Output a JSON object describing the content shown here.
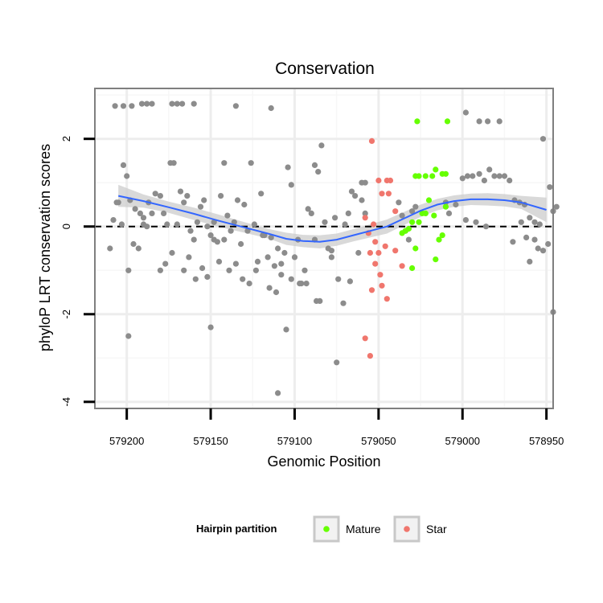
{
  "chart_data": {
    "type": "scatter",
    "title": "Conservation",
    "xlabel": "Genomic Position",
    "ylabel": "phyloP LRT conservation scores",
    "x_reversed": true,
    "xlim": [
      579219,
      578946
    ],
    "ylim": [
      -4.15,
      3.15
    ],
    "x_ticks": [
      579200,
      579150,
      579100,
      579050,
      579000,
      578950
    ],
    "x_tick_labels": [
      "579200",
      "579150",
      "579100",
      "579050",
      "579000",
      "578950"
    ],
    "y_ticks": [
      2,
      0,
      -2,
      -4
    ],
    "y_tick_labels": [
      "2",
      "0",
      "-2",
      "-4"
    ],
    "reference_line": {
      "y": 0,
      "style": "dashed"
    },
    "legend": {
      "title": "Hairpin partition",
      "position": "bottom",
      "entries": [
        {
          "label": "Mature",
          "color": "#66ff00"
        },
        {
          "label": "Star",
          "color": "#f0766d"
        }
      ]
    },
    "colors": {
      "other": "#8c8c8c",
      "mature": "#66ff00",
      "star": "#f0766d",
      "smooth": "#3366ff",
      "ribbon": "#cccccc"
    },
    "smooth": {
      "x": [
        579205,
        579190,
        579175,
        579160,
        579145,
        579130,
        579115,
        579105,
        579095,
        579085,
        579075,
        579065,
        579055,
        579045,
        579035,
        579025,
        579015,
        579005,
        578995,
        578985,
        578975,
        578965,
        578950
      ],
      "y": [
        0.7,
        0.58,
        0.44,
        0.29,
        0.13,
        -0.02,
        -0.17,
        -0.28,
        -0.33,
        -0.35,
        -0.3,
        -0.2,
        -0.1,
        0.0,
        0.18,
        0.36,
        0.5,
        0.58,
        0.62,
        0.62,
        0.6,
        0.55,
        0.38
      ],
      "lower": [
        0.45,
        0.43,
        0.31,
        0.15,
        -0.01,
        -0.14,
        -0.28,
        -0.42,
        -0.47,
        -0.5,
        -0.44,
        -0.34,
        -0.25,
        -0.16,
        0.03,
        0.22,
        0.37,
        0.45,
        0.49,
        0.48,
        0.46,
        0.4,
        0.1
      ],
      "upper": [
        0.95,
        0.73,
        0.57,
        0.43,
        0.27,
        0.1,
        -0.06,
        -0.14,
        -0.19,
        -0.2,
        -0.16,
        -0.06,
        0.05,
        0.16,
        0.33,
        0.5,
        0.63,
        0.71,
        0.75,
        0.76,
        0.74,
        0.7,
        0.66
      ]
    },
    "series": [
      {
        "name": "Other",
        "color": "#8c8c8c",
        "points": [
          [
            579207,
            2.75
          ],
          [
            579202,
            2.75
          ],
          [
            579197,
            2.75
          ],
          [
            579191,
            2.8
          ],
          [
            579188,
            2.8
          ],
          [
            579185,
            2.8
          ],
          [
            579173,
            2.8
          ],
          [
            579170,
            2.8
          ],
          [
            579167,
            2.8
          ],
          [
            579160,
            2.8
          ],
          [
            579135,
            2.75
          ],
          [
            579114,
            2.7
          ],
          [
            579060,
            1.0
          ],
          [
            579058,
            1.0
          ],
          [
            578998,
            2.6
          ],
          [
            578990,
            2.4
          ],
          [
            578985,
            2.4
          ],
          [
            578978,
            2.4
          ],
          [
            578952,
            2.0
          ],
          [
            579208,
            0.15
          ],
          [
            579205,
            0.55
          ],
          [
            579202,
            1.4
          ],
          [
            579200,
            1.15
          ],
          [
            579198,
            0.6
          ],
          [
            579195,
            0.4
          ],
          [
            579192,
            0.3
          ],
          [
            579190,
            0.05
          ],
          [
            579188,
            0.0
          ],
          [
            579185,
            0.3
          ],
          [
            579183,
            0.75
          ],
          [
            579180,
            0.7
          ],
          [
            579178,
            0.3
          ],
          [
            579176,
            0.05
          ],
          [
            579174,
            1.45
          ],
          [
            579172,
            1.45
          ],
          [
            579170,
            0.05
          ],
          [
            579168,
            0.8
          ],
          [
            579166,
            0.55
          ],
          [
            579164,
            0.7
          ],
          [
            579162,
            -0.1
          ],
          [
            579160,
            -0.3
          ],
          [
            579158,
            0.1
          ],
          [
            579156,
            0.45
          ],
          [
            579154,
            0.6
          ],
          [
            579152,
            0.0
          ],
          [
            579150,
            -0.2
          ],
          [
            579148,
            0.1
          ],
          [
            579146,
            -0.35
          ],
          [
            579144,
            0.7
          ],
          [
            579142,
            1.45
          ],
          [
            579140,
            0.25
          ],
          [
            579138,
            -0.1
          ],
          [
            579136,
            0.1
          ],
          [
            579134,
            0.6
          ],
          [
            579132,
            -0.4
          ],
          [
            579130,
            0.5
          ],
          [
            579128,
            -0.1
          ],
          [
            579126,
            1.45
          ],
          [
            579124,
            0.05
          ],
          [
            579122,
            -0.8
          ],
          [
            579120,
            0.75
          ],
          [
            579118,
            -0.2
          ],
          [
            579116,
            -0.7
          ],
          [
            579114,
            -0.25
          ],
          [
            579112,
            -0.9
          ],
          [
            579110,
            -0.5
          ],
          [
            579108,
            -1.1
          ],
          [
            579106,
            -0.6
          ],
          [
            579104,
            1.35
          ],
          [
            579102,
            0.95
          ],
          [
            579100,
            -0.7
          ],
          [
            579098,
            -0.3
          ],
          [
            579096,
            -1.3
          ],
          [
            579094,
            -1.0
          ],
          [
            579092,
            0.4
          ],
          [
            579090,
            0.3
          ],
          [
            579088,
            1.4
          ],
          [
            579086,
            1.25
          ],
          [
            579084,
            1.85
          ],
          [
            579082,
            0.1
          ],
          [
            579080,
            -0.5
          ],
          [
            579078,
            -0.7
          ],
          [
            579076,
            0.2
          ],
          [
            579074,
            -1.2
          ],
          [
            579070,
            0.05
          ],
          [
            579068,
            0.3
          ],
          [
            579066,
            0.8
          ],
          [
            579064,
            0.7
          ],
          [
            579062,
            -0.6
          ],
          [
            579060,
            0.6
          ],
          [
            579058,
            0.3
          ],
          [
            579210,
            -0.5
          ],
          [
            579206,
            0.55
          ],
          [
            579203,
            0.05
          ],
          [
            579199,
            -1.0
          ],
          [
            579196,
            -0.4
          ],
          [
            579193,
            -0.5
          ],
          [
            579190,
            0.2
          ],
          [
            579187,
            0.55
          ],
          [
            579180,
            -1.0
          ],
          [
            579177,
            -0.85
          ],
          [
            579173,
            -0.6
          ],
          [
            579166,
            -1.0
          ],
          [
            579163,
            -0.7
          ],
          [
            579159,
            -1.2
          ],
          [
            579155,
            -0.95
          ],
          [
            579152,
            -1.15
          ],
          [
            579148,
            -0.3
          ],
          [
            579145,
            -0.8
          ],
          [
            579142,
            -0.3
          ],
          [
            579139,
            -1.0
          ],
          [
            579135,
            -0.85
          ],
          [
            579131,
            -1.2
          ],
          [
            579127,
            -1.3
          ],
          [
            579123,
            -1.0
          ],
          [
            579119,
            -0.2
          ],
          [
            579115,
            -1.4
          ],
          [
            579111,
            -1.5
          ],
          [
            579108,
            -0.85
          ],
          [
            579102,
            -1.2
          ],
          [
            579097,
            -1.3
          ],
          [
            579093,
            -1.3
          ],
          [
            579088,
            -0.3
          ],
          [
            579087,
            -1.7
          ],
          [
            579085,
            -1.7
          ],
          [
            579078,
            -0.55
          ],
          [
            579071,
            -1.75
          ],
          [
            579067,
            -1.25
          ],
          [
            579199,
            -2.5
          ],
          [
            579150,
            -2.3
          ],
          [
            579105,
            -2.35
          ],
          [
            579075,
            -3.1
          ],
          [
            579110,
            -3.8
          ],
          [
            579038,
            0.55
          ],
          [
            579036,
            0.25
          ],
          [
            579034,
            -0.1
          ],
          [
            579032,
            -0.3
          ],
          [
            579030,
            0.35
          ],
          [
            579028,
            0.45
          ],
          [
            579010,
            0.55
          ],
          [
            579008,
            0.3
          ],
          [
            579004,
            0.5
          ],
          [
            578998,
            0.15
          ],
          [
            578992,
            0.1
          ],
          [
            578986,
            0.0
          ],
          [
            579000,
            1.1
          ],
          [
            578997,
            1.15
          ],
          [
            578994,
            1.15
          ],
          [
            578990,
            1.2
          ],
          [
            578987,
            1.05
          ],
          [
            578984,
            1.3
          ],
          [
            578981,
            1.15
          ],
          [
            578978,
            1.15
          ],
          [
            578975,
            1.15
          ],
          [
            578972,
            1.05
          ],
          [
            578969,
            0.6
          ],
          [
            578966,
            0.55
          ],
          [
            578963,
            0.5
          ],
          [
            578960,
            0.2
          ],
          [
            578957,
            0.1
          ],
          [
            578954,
            0.05
          ],
          [
            578970,
            -0.35
          ],
          [
            578965,
            0.1
          ],
          [
            578962,
            -0.25
          ],
          [
            578960,
            -0.8
          ],
          [
            578957,
            -0.3
          ],
          [
            578955,
            -0.5
          ],
          [
            578952,
            -0.55
          ],
          [
            578949,
            -0.4
          ],
          [
            578946,
            0.35
          ],
          [
            578944,
            0.45
          ],
          [
            578948,
            0.9
          ],
          [
            578946,
            -1.95
          ]
        ]
      },
      {
        "name": "Mature",
        "color": "#66ff00",
        "points": [
          [
            579027,
            2.4
          ],
          [
            579009,
            2.4
          ],
          [
            579028,
            1.15
          ],
          [
            579026,
            1.15
          ],
          [
            579022,
            1.15
          ],
          [
            579018,
            1.15
          ],
          [
            579016,
            1.3
          ],
          [
            579012,
            1.2
          ],
          [
            579010,
            1.2
          ],
          [
            579020,
            0.6
          ],
          [
            579024,
            0.3
          ],
          [
            579030,
            0.1
          ],
          [
            579032,
            -0.05
          ],
          [
            579034,
            -0.1
          ],
          [
            579036,
            -0.15
          ],
          [
            579026,
            0.1
          ],
          [
            579022,
            0.3
          ],
          [
            579017,
            0.25
          ],
          [
            579012,
            -0.2
          ],
          [
            579014,
            -0.3
          ],
          [
            579010,
            0.45
          ],
          [
            579028,
            -0.5
          ],
          [
            579016,
            -0.75
          ],
          [
            579030,
            -0.95
          ]
        ]
      },
      {
        "name": "Star",
        "color": "#f0766d",
        "points": [
          [
            579054,
            1.95
          ],
          [
            579050,
            1.05
          ],
          [
            579045,
            1.05
          ],
          [
            579043,
            1.05
          ],
          [
            579048,
            0.75
          ],
          [
            579044,
            0.75
          ],
          [
            579040,
            0.35
          ],
          [
            579058,
            0.2
          ],
          [
            579053,
            0.05
          ],
          [
            579056,
            -0.15
          ],
          [
            579052,
            -0.35
          ],
          [
            579046,
            -0.45
          ],
          [
            579050,
            -0.6
          ],
          [
            579055,
            -0.6
          ],
          [
            579052,
            -0.85
          ],
          [
            579049,
            -1.1
          ],
          [
            579040,
            -0.55
          ],
          [
            579036,
            -0.9
          ],
          [
            579048,
            -1.35
          ],
          [
            579054,
            -1.45
          ],
          [
            579045,
            -1.65
          ],
          [
            579058,
            -2.55
          ],
          [
            579055,
            -2.95
          ]
        ]
      }
    ]
  }
}
